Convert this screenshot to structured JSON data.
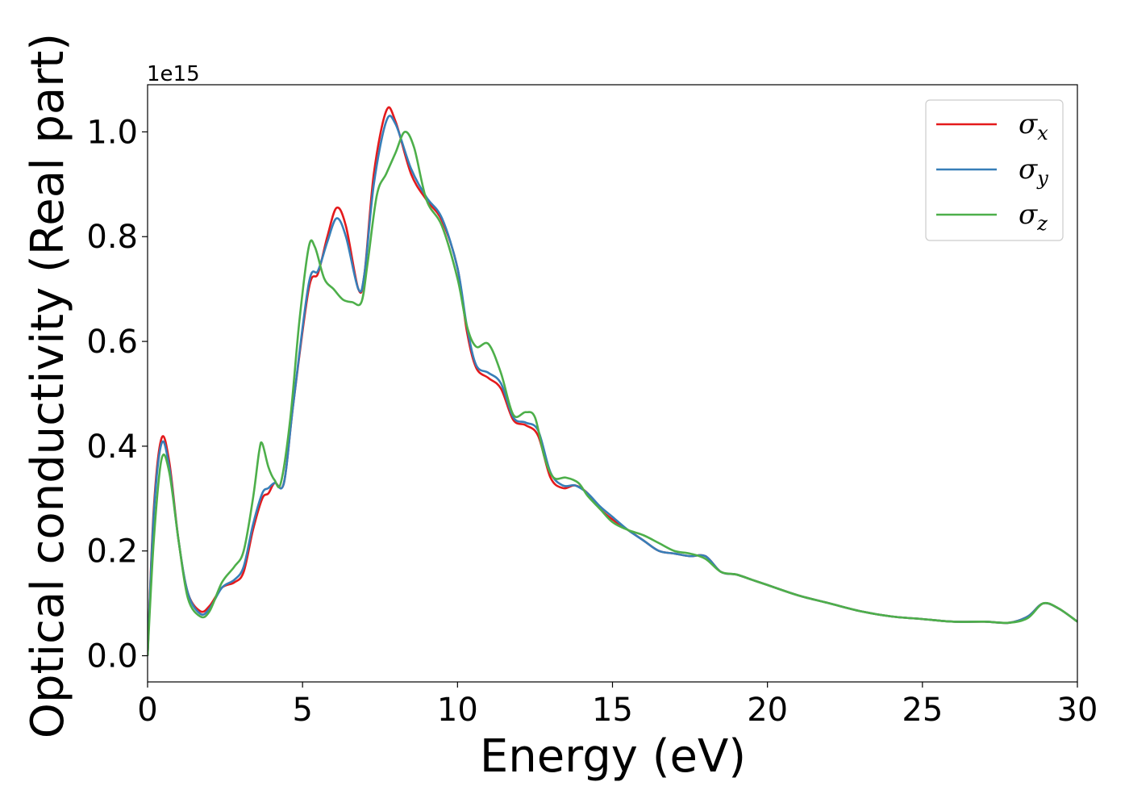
{
  "chart_data": {
    "type": "line",
    "xlabel": "Energy (eV)",
    "ylabel": "Optical conductivity (Real part)",
    "y_offset_label": "1e15",
    "xlim": [
      0,
      30
    ],
    "ylim": [
      -0.05,
      1.09
    ],
    "x_ticks": [
      "0",
      "5",
      "10",
      "15",
      "20",
      "25",
      "30"
    ],
    "y_ticks": [
      "0.0",
      "0.2",
      "0.4",
      "0.6",
      "0.8",
      "1.0"
    ],
    "grid": false,
    "legend_position": "top-right",
    "series": [
      {
        "name": "σx",
        "legend_main": "σ",
        "legend_sub": "x",
        "color": "#e41a1c",
        "points": [
          [
            0,
            0
          ],
          [
            0.2,
            0.28
          ],
          [
            0.45,
            0.415
          ],
          [
            0.7,
            0.37
          ],
          [
            1.0,
            0.22
          ],
          [
            1.3,
            0.12
          ],
          [
            1.7,
            0.085
          ],
          [
            2.0,
            0.095
          ],
          [
            2.4,
            0.13
          ],
          [
            2.8,
            0.14
          ],
          [
            3.1,
            0.16
          ],
          [
            3.4,
            0.24
          ],
          [
            3.7,
            0.3
          ],
          [
            3.9,
            0.31
          ],
          [
            4.1,
            0.33
          ],
          [
            4.4,
            0.33
          ],
          [
            4.7,
            0.48
          ],
          [
            5.2,
            0.7
          ],
          [
            5.5,
            0.73
          ],
          [
            5.8,
            0.8
          ],
          [
            6.1,
            0.855
          ],
          [
            6.4,
            0.82
          ],
          [
            6.8,
            0.7
          ],
          [
            7.0,
            0.73
          ],
          [
            7.3,
            0.92
          ],
          [
            7.7,
            1.04
          ],
          [
            8.0,
            1.02
          ],
          [
            8.5,
            0.92
          ],
          [
            9.0,
            0.87
          ],
          [
            9.5,
            0.83
          ],
          [
            10.0,
            0.74
          ],
          [
            10.3,
            0.62
          ],
          [
            10.6,
            0.55
          ],
          [
            11.0,
            0.53
          ],
          [
            11.4,
            0.51
          ],
          [
            11.8,
            0.45
          ],
          [
            12.2,
            0.44
          ],
          [
            12.6,
            0.42
          ],
          [
            13.0,
            0.34
          ],
          [
            13.4,
            0.32
          ],
          [
            13.8,
            0.325
          ],
          [
            14.2,
            0.31
          ],
          [
            14.6,
            0.28
          ],
          [
            15.0,
            0.26
          ],
          [
            15.5,
            0.24
          ],
          [
            16.0,
            0.22
          ],
          [
            16.5,
            0.2
          ],
          [
            17.0,
            0.195
          ],
          [
            17.5,
            0.19
          ],
          [
            18.0,
            0.19
          ],
          [
            18.5,
            0.16
          ],
          [
            19.0,
            0.155
          ],
          [
            19.5,
            0.145
          ],
          [
            20.0,
            0.135
          ],
          [
            21.0,
            0.115
          ],
          [
            22.0,
            0.1
          ],
          [
            23.0,
            0.085
          ],
          [
            24.0,
            0.075
          ],
          [
            25.0,
            0.07
          ],
          [
            26.0,
            0.065
          ],
          [
            27.0,
            0.065
          ],
          [
            27.8,
            0.063
          ],
          [
            28.4,
            0.075
          ],
          [
            28.9,
            0.1
          ],
          [
            29.4,
            0.09
          ],
          [
            30.0,
            0.065
          ]
        ]
      },
      {
        "name": "σy",
        "legend_main": "σ",
        "legend_sub": "y",
        "color": "#377eb8",
        "points": [
          [
            0,
            0
          ],
          [
            0.2,
            0.27
          ],
          [
            0.45,
            0.405
          ],
          [
            0.7,
            0.36
          ],
          [
            1.0,
            0.22
          ],
          [
            1.3,
            0.12
          ],
          [
            1.7,
            0.08
          ],
          [
            2.0,
            0.09
          ],
          [
            2.4,
            0.13
          ],
          [
            2.8,
            0.145
          ],
          [
            3.1,
            0.17
          ],
          [
            3.4,
            0.25
          ],
          [
            3.7,
            0.31
          ],
          [
            3.9,
            0.32
          ],
          [
            4.1,
            0.33
          ],
          [
            4.4,
            0.33
          ],
          [
            4.7,
            0.48
          ],
          [
            5.2,
            0.71
          ],
          [
            5.5,
            0.735
          ],
          [
            5.8,
            0.79
          ],
          [
            6.1,
            0.835
          ],
          [
            6.4,
            0.8
          ],
          [
            6.8,
            0.7
          ],
          [
            7.0,
            0.73
          ],
          [
            7.3,
            0.9
          ],
          [
            7.7,
            1.02
          ],
          [
            8.0,
            1.015
          ],
          [
            8.5,
            0.93
          ],
          [
            9.0,
            0.875
          ],
          [
            9.5,
            0.835
          ],
          [
            10.0,
            0.74
          ],
          [
            10.3,
            0.63
          ],
          [
            10.6,
            0.555
          ],
          [
            11.0,
            0.54
          ],
          [
            11.4,
            0.52
          ],
          [
            11.8,
            0.455
          ],
          [
            12.2,
            0.445
          ],
          [
            12.6,
            0.43
          ],
          [
            13.0,
            0.35
          ],
          [
            13.4,
            0.325
          ],
          [
            13.8,
            0.325
          ],
          [
            14.2,
            0.31
          ],
          [
            14.6,
            0.285
          ],
          [
            15.0,
            0.265
          ],
          [
            15.5,
            0.24
          ],
          [
            16.0,
            0.22
          ],
          [
            16.5,
            0.2
          ],
          [
            17.0,
            0.195
          ],
          [
            17.5,
            0.19
          ],
          [
            18.0,
            0.19
          ],
          [
            18.5,
            0.16
          ],
          [
            19.0,
            0.155
          ],
          [
            19.5,
            0.145
          ],
          [
            20.0,
            0.135
          ],
          [
            21.0,
            0.115
          ],
          [
            22.0,
            0.1
          ],
          [
            23.0,
            0.085
          ],
          [
            24.0,
            0.075
          ],
          [
            25.0,
            0.07
          ],
          [
            26.0,
            0.065
          ],
          [
            27.0,
            0.065
          ],
          [
            27.8,
            0.063
          ],
          [
            28.4,
            0.075
          ],
          [
            28.9,
            0.1
          ],
          [
            29.4,
            0.09
          ],
          [
            30.0,
            0.065
          ]
        ]
      },
      {
        "name": "σz",
        "legend_main": "σ",
        "legend_sub": "z",
        "color": "#4daf4a",
        "points": [
          [
            0,
            0
          ],
          [
            0.2,
            0.22
          ],
          [
            0.45,
            0.375
          ],
          [
            0.7,
            0.35
          ],
          [
            1.0,
            0.22
          ],
          [
            1.3,
            0.11
          ],
          [
            1.7,
            0.075
          ],
          [
            2.0,
            0.085
          ],
          [
            2.4,
            0.14
          ],
          [
            2.8,
            0.17
          ],
          [
            3.1,
            0.2
          ],
          [
            3.4,
            0.3
          ],
          [
            3.6,
            0.39
          ],
          [
            3.7,
            0.405
          ],
          [
            3.9,
            0.36
          ],
          [
            4.1,
            0.335
          ],
          [
            4.3,
            0.33
          ],
          [
            4.6,
            0.45
          ],
          [
            4.9,
            0.64
          ],
          [
            5.2,
            0.78
          ],
          [
            5.4,
            0.78
          ],
          [
            5.7,
            0.72
          ],
          [
            6.0,
            0.7
          ],
          [
            6.3,
            0.68
          ],
          [
            6.6,
            0.675
          ],
          [
            6.9,
            0.675
          ],
          [
            7.1,
            0.75
          ],
          [
            7.4,
            0.88
          ],
          [
            7.7,
            0.92
          ],
          [
            8.0,
            0.96
          ],
          [
            8.3,
            1.0
          ],
          [
            8.6,
            0.97
          ],
          [
            9.0,
            0.87
          ],
          [
            9.5,
            0.82
          ],
          [
            10.0,
            0.72
          ],
          [
            10.3,
            0.63
          ],
          [
            10.6,
            0.59
          ],
          [
            11.0,
            0.595
          ],
          [
            11.4,
            0.54
          ],
          [
            11.8,
            0.46
          ],
          [
            12.2,
            0.465
          ],
          [
            12.5,
            0.455
          ],
          [
            12.8,
            0.38
          ],
          [
            13.1,
            0.34
          ],
          [
            13.5,
            0.34
          ],
          [
            13.9,
            0.33
          ],
          [
            14.2,
            0.305
          ],
          [
            14.6,
            0.28
          ],
          [
            15.0,
            0.255
          ],
          [
            15.5,
            0.24
          ],
          [
            16.0,
            0.23
          ],
          [
            16.5,
            0.215
          ],
          [
            17.0,
            0.2
          ],
          [
            17.5,
            0.195
          ],
          [
            18.0,
            0.185
          ],
          [
            18.5,
            0.16
          ],
          [
            19.0,
            0.155
          ],
          [
            19.5,
            0.145
          ],
          [
            20.0,
            0.135
          ],
          [
            21.0,
            0.115
          ],
          [
            22.0,
            0.1
          ],
          [
            23.0,
            0.085
          ],
          [
            24.0,
            0.075
          ],
          [
            25.0,
            0.07
          ],
          [
            26.0,
            0.065
          ],
          [
            27.0,
            0.065
          ],
          [
            27.8,
            0.063
          ],
          [
            28.4,
            0.072
          ],
          [
            28.9,
            0.1
          ],
          [
            29.4,
            0.09
          ],
          [
            30.0,
            0.065
          ]
        ]
      }
    ]
  }
}
